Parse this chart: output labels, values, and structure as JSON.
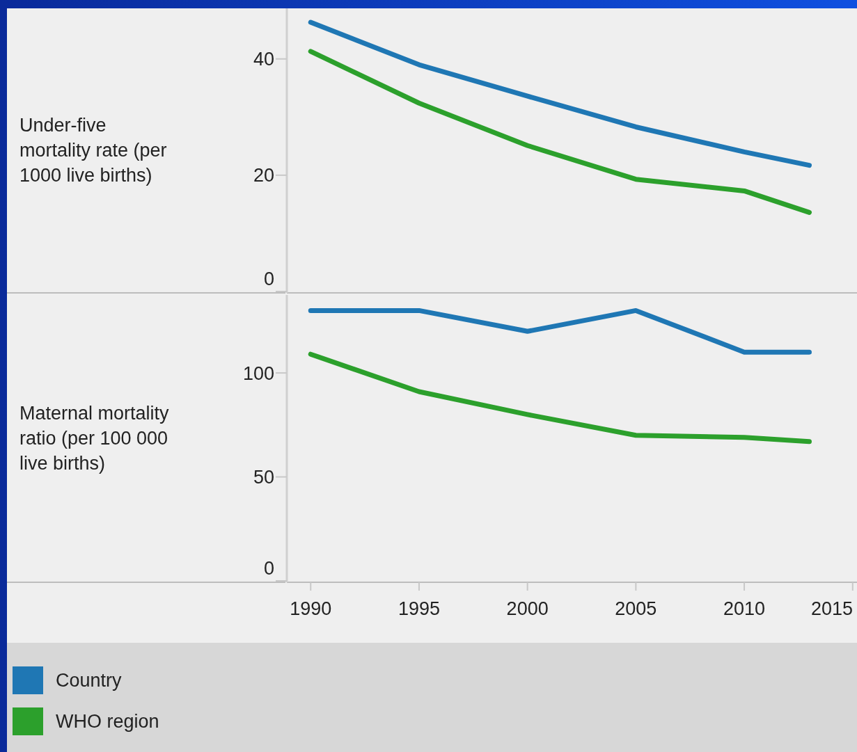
{
  "chart_data": [
    {
      "type": "line",
      "ylabel": "Under-five mortality rate (per 1000 live births)",
      "x": [
        1990,
        1995,
        2000,
        2005,
        2010,
        2013
      ],
      "xlim": [
        1988.9,
        2015.2
      ],
      "xticks": [
        1990,
        1995,
        2000,
        2005,
        2010,
        2015
      ],
      "ylim": [
        0,
        48.7
      ],
      "yticks": [
        0,
        20,
        40
      ],
      "tick_labels": "y",
      "marker": "none",
      "legend": "bottom",
      "series": [
        {
          "name": "Country",
          "color": "#1f77b4",
          "values": [
            46.3,
            39.0,
            33.6,
            28.3,
            24.0,
            21.7
          ]
        },
        {
          "name": "WHO region",
          "color": "#2ca02c",
          "values": [
            41.3,
            32.4,
            25.1,
            19.3,
            17.3,
            13.6
          ]
        }
      ]
    },
    {
      "type": "line",
      "ylabel": "Maternal mortality ratio (per 100 000 live births)",
      "x": [
        1990,
        1995,
        2000,
        2005,
        2010,
        2013
      ],
      "xlim": [
        1988.9,
        2015.2
      ],
      "xticks": [
        1990,
        1995,
        2000,
        2005,
        2010,
        2015
      ],
      "ylim": [
        0,
        137.5
      ],
      "yticks": [
        0,
        50,
        100
      ],
      "marker": "none",
      "legend": "bottom",
      "series": [
        {
          "name": "Country",
          "color": "#1f77b4",
          "values": [
            130,
            130,
            120,
            130,
            110,
            110
          ]
        },
        {
          "name": "WHO region",
          "color": "#2ca02c",
          "values": [
            109,
            91,
            80,
            70,
            69,
            67
          ]
        }
      ]
    }
  ]
}
